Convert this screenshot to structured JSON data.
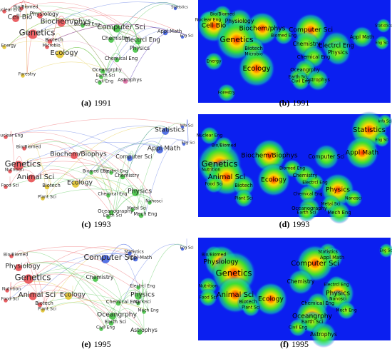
{
  "panels": [
    {
      "letter": "(a)",
      "year": "1991",
      "labels": [
        "Nuclear Eng",
        "Bio/Biomed",
        "Cell Bio",
        "Physiology",
        "Biochem/phys",
        "Genetics",
        "Biotech",
        "Microbio",
        "Energy",
        "Ecology",
        "Forestry",
        "Biomed Eng",
        "Computer Sci",
        "Chemistry",
        "Electrcl Eng",
        "Physics",
        "Chemical Eng",
        "Oceangrphy",
        "Earth Sci",
        "Civil Eng",
        "Astrophys",
        "Appl Math",
        "Statistics",
        "Eng Sci"
      ]
    },
    {
      "letter": "(b)",
      "year": "1991",
      "labels": [
        "Nuclear Eng",
        "Bio/Biomed",
        "Cell Bio",
        "Physiology",
        "Biochem/phys",
        "Genetics",
        "Biotech",
        "Microbio",
        "Energy",
        "Ecology",
        "Forestry",
        "Biomed Eng",
        "Computer Sci",
        "Chemistry",
        "Electrcl Eng",
        "Physics",
        "Chemical Eng",
        "Oceangrphy",
        "Earth Sci",
        "Civil Eng",
        "Astrophys",
        "Appl Math",
        "Statistics",
        "Eng Sci"
      ]
    },
    {
      "letter": "(c)",
      "year": "1993",
      "labels": [
        "Info Sci",
        "Statistics",
        "Nuclear Eng",
        "Eng Sci",
        "Bio/Biomed",
        "Appl Math",
        "Biochem/Biophys",
        "Computer Sci",
        "Genetics",
        "Nutrition",
        "Animal Sci",
        "Biomed Eng",
        "Food Sci",
        "Ecology",
        "Chemistry",
        "Biotech",
        "Electrcl Eng",
        "Physics",
        "Plant Sci",
        "Chemical Eng",
        "Nanosci",
        "Metal Sci",
        "Oceanography",
        "Earth Sci",
        "Mech Eng"
      ]
    },
    {
      "letter": "(d)",
      "year": "1993",
      "labels": [
        "Info Sci",
        "Statistics",
        "Nuclear Eng",
        "Eng Sci",
        "Bio/Biomed",
        "Appl Math",
        "Biochem/Biophys",
        "Computer Sci",
        "Genetics",
        "Nutrition",
        "Animal Sci",
        "Biomed Eng",
        "Food Sci",
        "Ecology",
        "Chemistry",
        "Biotech",
        "Electrcl Eng",
        "Physics",
        "Plant Sci",
        "Chemical Eng",
        "Nanosci",
        "Metal Sci",
        "Oceanography",
        "Earth Sci",
        "Mech Eng"
      ]
    },
    {
      "letter": "(e)",
      "year": "1995",
      "labels": [
        "Statistics",
        "Appl Math",
        "Eng Sci",
        "Computer Sci",
        "Bio/Biomed",
        "Physiology",
        "Genetics",
        "Chemistry",
        "Electrcl Eng",
        "Nutrition",
        "Animal Sci",
        "Ecology",
        "Physics",
        "Nanosci",
        "Food Sci",
        "Biotech",
        "Plant Sci",
        "Chemical Eng",
        "Mech Eng",
        "Oceangrphy",
        "Earth Sci",
        "Civil Eng",
        "Astrophys"
      ]
    },
    {
      "letter": "(f)",
      "year": "1995",
      "labels": [
        "Statistics",
        "Appl Math",
        "Eng Sci",
        "Computer Sci",
        "Bio/Biomed",
        "Physiology",
        "Genetics",
        "Chemistry",
        "Electrcl Eng",
        "Nutrition",
        "Animal Sci",
        "Ecology",
        "Physics",
        "Nanosci",
        "Food Sci",
        "Biotech",
        "Plant Sci",
        "Chemical Eng",
        "Mech Eng",
        "Oceangrphy",
        "Earth Sci",
        "Civil Eng",
        "Astrophys"
      ]
    }
  ]
}
